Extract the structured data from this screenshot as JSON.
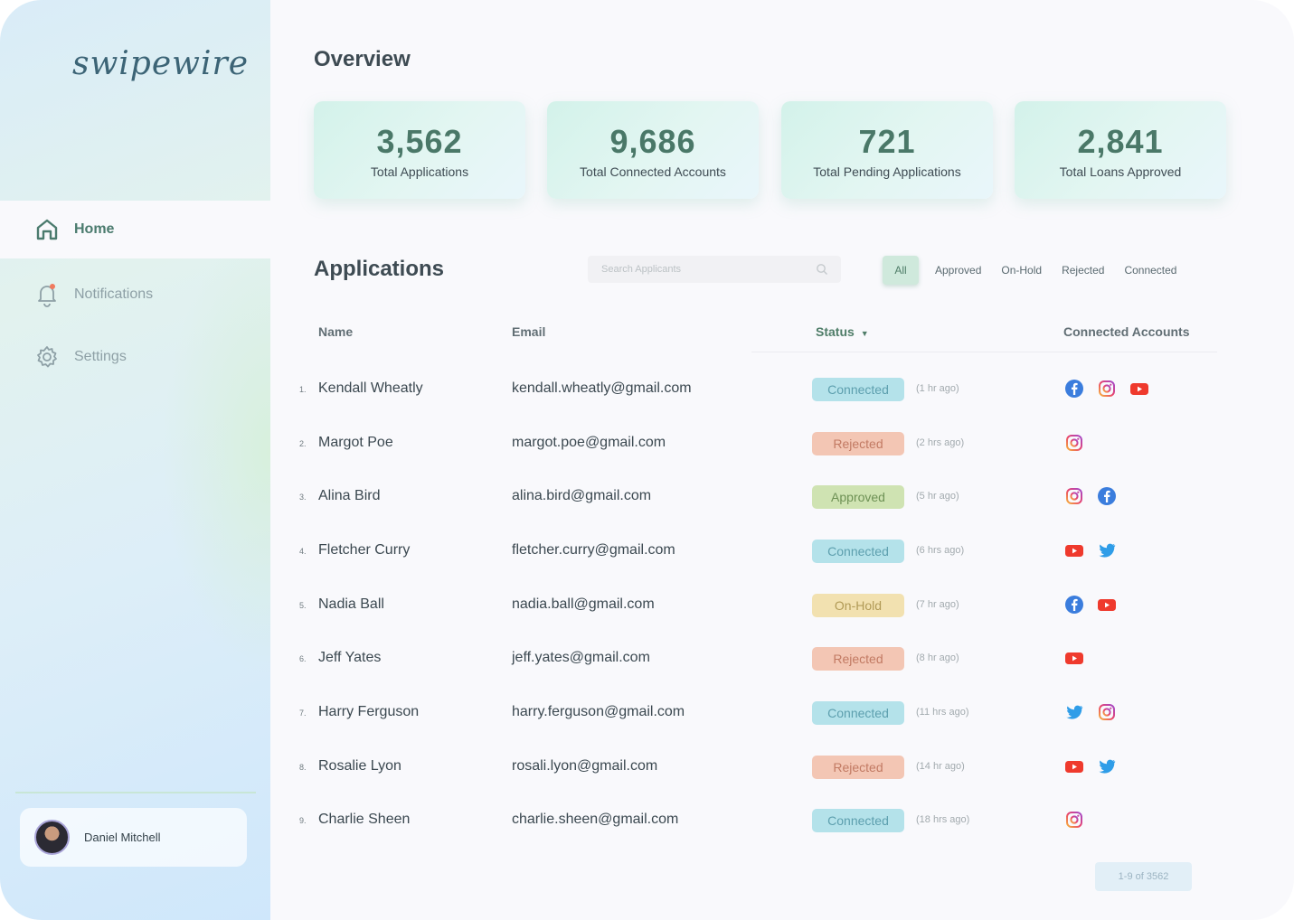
{
  "app": {
    "logo": "swipewire"
  },
  "nav": {
    "home": "Home",
    "notifications": "Notifications",
    "settings": "Settings"
  },
  "user": {
    "name": "Daniel Mitchell"
  },
  "overview": {
    "title": "Overview",
    "stats": [
      {
        "value": "3,562",
        "label": "Total Applications"
      },
      {
        "value": "9,686",
        "label": "Total Connected Accounts"
      },
      {
        "value": "721",
        "label": "Total Pending Applications"
      },
      {
        "value": "2,841",
        "label": "Total Loans Approved"
      }
    ]
  },
  "applications": {
    "title": "Applications",
    "search_placeholder": "Search Applicants",
    "filters": [
      "All",
      "Approved",
      "On-Hold",
      "Rejected",
      "Connected"
    ],
    "columns": {
      "name": "Name",
      "email": "Email",
      "status": "Status",
      "accounts": "Connected Accounts"
    },
    "status_colors": {
      "Connected": {
        "bg": "#b4e2ea",
        "fg": "#5d9fae"
      },
      "Rejected": {
        "bg": "#f3c6b4",
        "fg": "#c27a63"
      },
      "Approved": {
        "bg": "#cfe3b2",
        "fg": "#6e9155"
      },
      "On-Hold": {
        "bg": "#f2e1b0",
        "fg": "#b19a56"
      }
    },
    "rows": [
      {
        "idx": "1.",
        "name": "Kendall Wheatly",
        "email": "kendall.wheatly@gmail.com",
        "status": "Connected",
        "time": "(1 hr ago)",
        "accounts": [
          "facebook-icon",
          "instagram-icon",
          "youtube-icon"
        ]
      },
      {
        "idx": "2.",
        "name": "Margot Poe",
        "email": "margot.poe@gmail.com",
        "status": "Rejected",
        "time": "(2 hrs ago)",
        "accounts": [
          "instagram-icon"
        ]
      },
      {
        "idx": "3.",
        "name": "Alina Bird",
        "email": "alina.bird@gmail.com",
        "status": "Approved",
        "time": "(5 hr ago)",
        "accounts": [
          "instagram-icon",
          "facebook-icon"
        ]
      },
      {
        "idx": "4.",
        "name": "Fletcher Curry",
        "email": "fletcher.curry@gmail.com",
        "status": "Connected",
        "time": "(6 hrs ago)",
        "accounts": [
          "youtube-icon",
          "twitter-icon"
        ]
      },
      {
        "idx": "5.",
        "name": "Nadia Ball",
        "email": "nadia.ball@gmail.com",
        "status": "On-Hold",
        "time": "(7 hr ago)",
        "accounts": [
          "facebook-icon",
          "youtube-icon"
        ]
      },
      {
        "idx": "6.",
        "name": "Jeff Yates",
        "email": "jeff.yates@gmail.com",
        "status": "Rejected",
        "time": "(8 hr ago)",
        "accounts": [
          "youtube-icon"
        ]
      },
      {
        "idx": "7.",
        "name": "Harry Ferguson",
        "email": "harry.ferguson@gmail.com",
        "status": "Connected",
        "time": "(11 hrs ago)",
        "accounts": [
          "twitter-icon",
          "instagram-icon"
        ]
      },
      {
        "idx": "8.",
        "name": "Rosalie Lyon",
        "email": "rosali.lyon@gmail.com",
        "status": "Rejected",
        "time": "(14 hr ago)",
        "accounts": [
          "youtube-icon",
          "twitter-icon"
        ]
      },
      {
        "idx": "9.",
        "name": "Charlie Sheen",
        "email": "charlie.sheen@gmail.com",
        "status": "Connected",
        "time": "(18 hrs ago)",
        "accounts": [
          "instagram-icon"
        ]
      }
    ],
    "pagination": "1-9 of 3562"
  }
}
